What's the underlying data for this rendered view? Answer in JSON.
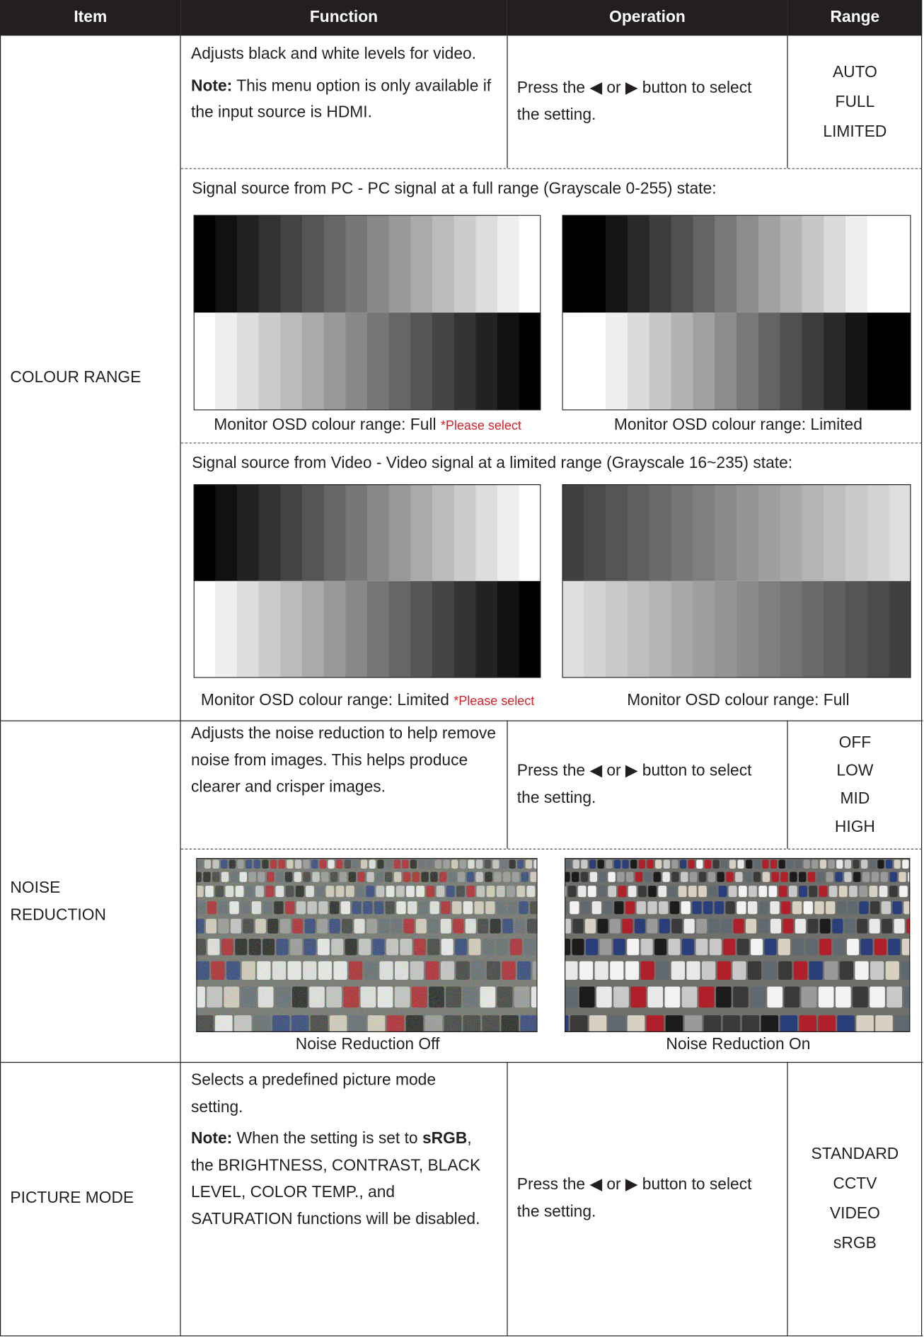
{
  "header": [
    "Item",
    "Function",
    "Operation",
    "Range"
  ],
  "rows": [
    {
      "item": "COLOUR RANGE",
      "function": "Adjusts black and white levels for video.",
      "note": {
        "label": "Note:",
        "parts": [
          " This menu option is only available if the input source is HDMI."
        ]
      },
      "operation": "Press the ◀ or ▶ button to select the setting.",
      "range": [
        "AUTO",
        "FULL",
        "LIMITED"
      ],
      "examples": [
        {
          "heading": "Signal source from PC - PC signal at a full range (Grayscale 0-255) state:",
          "captions": [
            {
              "text": "Monitor OSD colour range: Full",
              "flag": "*Please select"
            },
            {
              "text": "Monitor OSD colour range: Limited"
            }
          ]
        },
        {
          "heading": "Signal source from Video - Video signal at a limited range (Grayscale 16~235) state:",
          "captions": [
            {
              "text": "Monitor OSD colour range: Limited",
              "flag": "*Please select"
            },
            {
              "text": "Monitor OSD colour range: Full"
            }
          ]
        }
      ]
    },
    {
      "item": "NOISE REDUCTION",
      "function": "Adjusts the noise reduction to help remove noise from images. This helps produce clearer and crisper images.",
      "operation": "Press the ◀ or ▶ button to select the setting.",
      "range": [
        "OFF",
        "LOW",
        "MID",
        "HIGH"
      ],
      "examples": [
        {
          "captions": [
            {
              "text": "Noise Reduction Off"
            },
            {
              "text": "Noise Reduction On"
            }
          ]
        }
      ]
    },
    {
      "item": "PICTURE MODE",
      "function": "Selects a predefined picture mode setting.",
      "note": {
        "label": "Note:",
        "parts": [
          " When the setting is set to ",
          "sRGB",
          ", the BRIGHTNESS, CONTRAST, BLACK LEVEL, COLOR TEMP., and SATURATION functions will be disabled."
        ]
      },
      "operation": "Press the ◀ or ▶ button to select the setting.",
      "range": [
        "STANDARD",
        "CCTV",
        "VIDEO",
        "sRGB"
      ]
    }
  ]
}
